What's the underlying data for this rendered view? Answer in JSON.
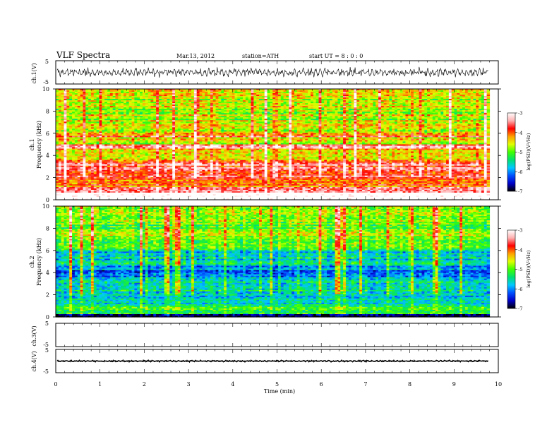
{
  "header": {
    "title": "VLF  Spectra",
    "date": "Mar.13, 2012",
    "station": "station=ATH",
    "start_ut": "start  UT  =    8  : 0  : 0"
  },
  "xaxis": {
    "label": "Time  (min)",
    "ticks": [
      "0",
      "1",
      "2",
      "3",
      "4",
      "5",
      "6",
      "7",
      "8",
      "9",
      "10"
    ],
    "range": [
      0,
      10
    ],
    "data_end": 9.8
  },
  "panels": [
    {
      "id": "ch1-wave",
      "ylabel": "ch.1(V)",
      "ticks": [
        "5",
        "-5"
      ]
    },
    {
      "id": "ch1-spec",
      "ylabel_top": "ch.1",
      "ylabel": "Frequency  (kHz)",
      "ticks": [
        "10",
        "8",
        "6",
        "4",
        "2",
        "0"
      ]
    },
    {
      "id": "ch2-spec",
      "ylabel_top": "ch.2",
      "ylabel": "Frequency  (kHz)",
      "ticks": [
        "10",
        "8",
        "6",
        "4",
        "2",
        "0"
      ]
    },
    {
      "id": "ch3-wave",
      "ylabel": "ch.3(V)",
      "ticks": [
        "5",
        "-5"
      ]
    },
    {
      "id": "ch4-wave",
      "ylabel": "ch.4(V)",
      "ticks": [
        "5",
        "-5"
      ]
    }
  ],
  "colorbar": {
    "label": "log(PSD)(V²/Hz)",
    "ticks": [
      "-3",
      "-4",
      "-5",
      "-6",
      "-7"
    ],
    "range": [
      -7,
      -3
    ],
    "colors": [
      "#000000",
      "#0000c8",
      "#0050ff",
      "#00c8ff",
      "#00e070",
      "#40ff00",
      "#e0ff00",
      "#ffa000",
      "#ff0000",
      "#ffb0b0",
      "#ffffff"
    ]
  },
  "chart_data": [
    {
      "type": "line",
      "channel": "ch.1",
      "xlabel": "Time  (min)",
      "ylabel": "ch.1(V)",
      "xlim": [
        0,
        10
      ],
      "ylim": [
        -5,
        5
      ],
      "note_values": "noisy waveform oscillating roughly between -1.5 and 2.5 V",
      "mean": 0,
      "amplitude": 1.8
    },
    {
      "type": "heatmap",
      "channel": "ch.1",
      "xlabel": "Time  (min)",
      "ylabel": "Frequency  (kHz)",
      "xlim": [
        0,
        10
      ],
      "ylim": [
        0,
        10
      ],
      "zlabel": "log(PSD)(V²/Hz)",
      "zlim": [
        -7,
        -3
      ],
      "bands": [
        {
          "fmin": 0.0,
          "fmax": 0.6,
          "level": -2.5
        },
        {
          "fmin": 0.6,
          "fmax": 1.2,
          "level": -3.4
        },
        {
          "fmin": 1.2,
          "fmax": 2.0,
          "level": -4.0
        },
        {
          "fmin": 2.0,
          "fmax": 3.5,
          "level": -3.6
        },
        {
          "fmin": 3.5,
          "fmax": 4.6,
          "level": -4.3
        },
        {
          "fmin": 4.6,
          "fmax": 5.0,
          "level": -3.4
        },
        {
          "fmin": 5.0,
          "fmax": 5.7,
          "level": -4.6
        },
        {
          "fmin": 5.7,
          "fmax": 6.0,
          "level": -3.9
        },
        {
          "fmin": 6.0,
          "fmax": 10.0,
          "level": -4.7
        }
      ]
    },
    {
      "type": "heatmap",
      "channel": "ch.2",
      "xlabel": "Time  (min)",
      "ylabel": "Frequency  (kHz)",
      "xlim": [
        0,
        10
      ],
      "ylim": [
        0,
        10
      ],
      "zlabel": "log(PSD)(V²/Hz)",
      "zlim": [
        -7,
        -3
      ],
      "bands": [
        {
          "fmin": 0.0,
          "fmax": 0.3,
          "level": -6.8
        },
        {
          "fmin": 0.3,
          "fmax": 1.2,
          "level": -5.2
        },
        {
          "fmin": 1.2,
          "fmax": 2.5,
          "level": -5.6
        },
        {
          "fmin": 2.5,
          "fmax": 3.6,
          "level": -5.4
        },
        {
          "fmin": 3.6,
          "fmax": 4.6,
          "level": -6.0
        },
        {
          "fmin": 4.6,
          "fmax": 6.0,
          "level": -5.6
        },
        {
          "fmin": 6.0,
          "fmax": 10.0,
          "level": -4.9
        }
      ]
    },
    {
      "type": "line",
      "channel": "ch.3",
      "xlabel": "Time  (min)",
      "ylabel": "ch.3(V)",
      "xlim": [
        0,
        10
      ],
      "ylim": [
        -5,
        5
      ],
      "note_values": "no visible signal"
    },
    {
      "type": "line",
      "channel": "ch.4",
      "xlabel": "Time  (min)",
      "ylabel": "ch.4(V)",
      "xlim": [
        0,
        10
      ],
      "ylim": [
        -5,
        5
      ],
      "mean": 0,
      "amplitude": 0.3
    }
  ]
}
